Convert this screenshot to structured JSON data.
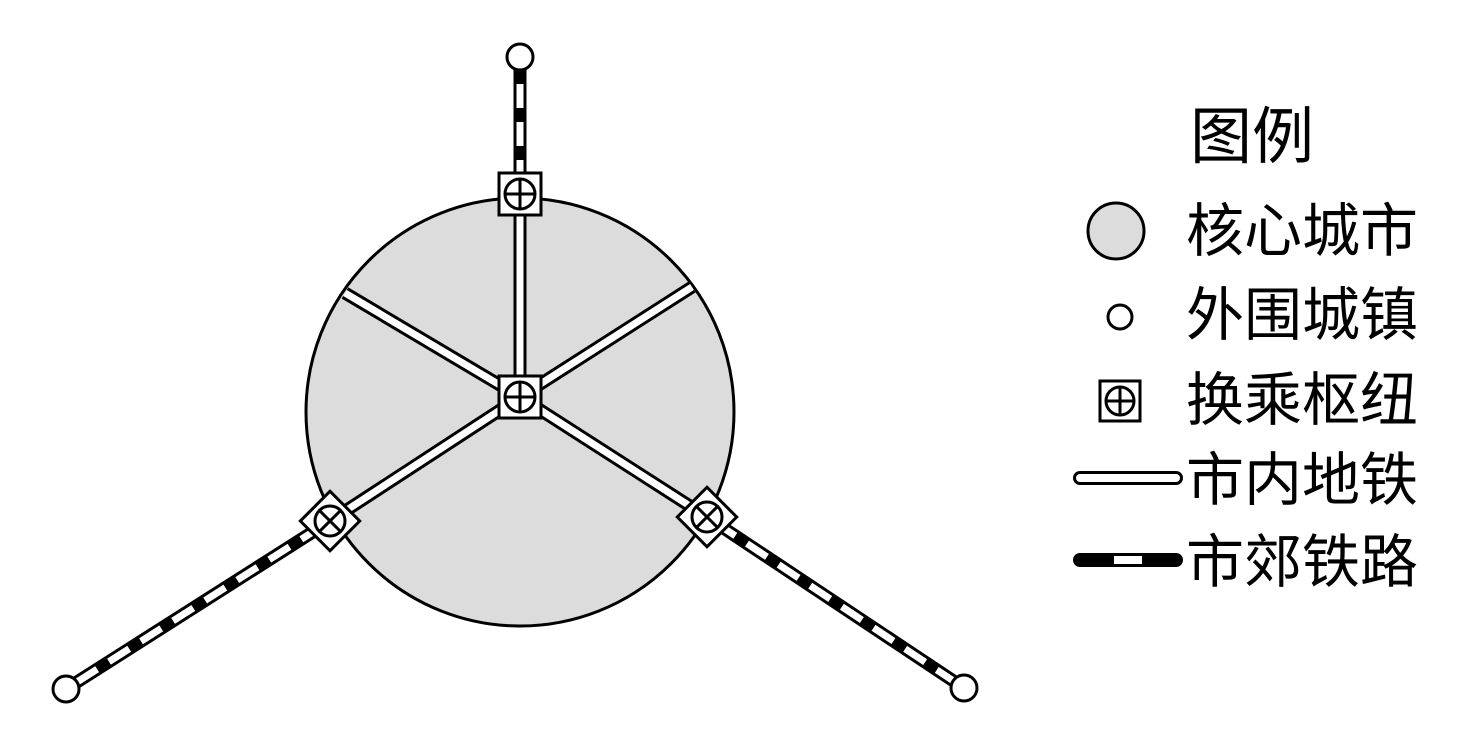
{
  "colors": {
    "core_city_fill": "#dcdcdc",
    "stroke": "#000000",
    "background": "#ffffff",
    "rail_white": "#ffffff",
    "rail_black": "#000000"
  },
  "map": {
    "core_city": {
      "symbol": "core-city"
    },
    "hubs": [
      {
        "id": "center",
        "symbol": "transfer-hub"
      },
      {
        "id": "north",
        "symbol": "transfer-hub"
      },
      {
        "id": "southwest",
        "symbol": "transfer-hub"
      },
      {
        "id": "southeast",
        "symbol": "transfer-hub"
      }
    ],
    "towns": [
      {
        "id": "north",
        "symbol": "outer-town"
      },
      {
        "id": "southwest",
        "symbol": "outer-town"
      },
      {
        "id": "southeast",
        "symbol": "outer-town"
      }
    ],
    "metro_lines": [
      "center-north",
      "center-southwest",
      "center-southeast",
      "center-northwest",
      "center-northeast"
    ],
    "suburban_railways": [
      "north",
      "southwest",
      "southeast"
    ]
  },
  "legend": {
    "title": "图例",
    "items": [
      {
        "key": "core_city",
        "symbol": "filled-circle",
        "label": "核心城市"
      },
      {
        "key": "outer_town",
        "symbol": "small-circle",
        "label": "外围城镇"
      },
      {
        "key": "transfer_hub",
        "symbol": "boxed-cross-circle",
        "label": "换乘枢纽"
      },
      {
        "key": "urban_metro",
        "symbol": "double-line",
        "label": "市内地铁"
      },
      {
        "key": "suburban_railway",
        "symbol": "dashed-railway",
        "label": "市郊铁路"
      }
    ]
  }
}
